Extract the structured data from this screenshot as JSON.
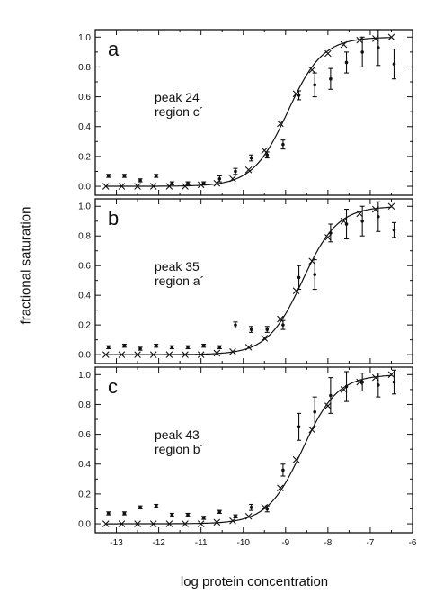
{
  "shared": {
    "ylabel": "fractional saturation",
    "xlabel": "log protein concentration",
    "x_ticks": [
      "-13",
      "-12",
      "-11",
      "-10",
      "-9",
      "-8",
      "-7",
      "-6"
    ],
    "y_ticks": [
      "0.0",
      "0.2",
      "0.4",
      "0.6",
      "0.8",
      "1.0"
    ]
  },
  "chart_data": [
    {
      "type": "scatter",
      "panel": "a",
      "annotation": [
        "peak 24",
        "region c´"
      ],
      "xlim": [
        -13.5,
        -6
      ],
      "ylim": [
        -0.06,
        1.05
      ],
      "x_minor_step": 0.5,
      "y_minor_step": 0.1,
      "fit_midpoint": -8.95,
      "fit_model_x": [
        -13.25,
        -12.875,
        -12.5,
        -12.125,
        -11.75,
        -11.375,
        -11.0,
        -10.625,
        -10.25,
        -9.875,
        -9.5,
        -9.125,
        -8.75,
        -8.375,
        -8.0,
        -7.625,
        -7.25,
        -6.875,
        -6.5
      ],
      "fit_model_y": [
        0.0,
        0.0,
        0.0,
        0.0,
        0.0,
        0.0,
        0.01,
        0.02,
        0.05,
        0.11,
        0.24,
        0.42,
        0.62,
        0.78,
        0.89,
        0.95,
        0.98,
        0.99,
        1.0
      ],
      "data_x": [
        -13.25,
        -12.875,
        -12.5,
        -12.125,
        -11.75,
        -11.375,
        -11.0,
        -10.625,
        -10.25,
        -9.875,
        -9.5,
        -9.125,
        -8.75,
        -8.375,
        -8.0,
        -7.625,
        -7.25,
        -6.875,
        -6.5
      ],
      "data_y": [
        0.07,
        0.07,
        0.04,
        0.07,
        0.02,
        0.02,
        0.02,
        0.05,
        0.1,
        0.19,
        0.21,
        0.28,
        0.61,
        0.68,
        0.72,
        0.83,
        0.9,
        0.93,
        0.82
      ],
      "data_err": [
        0.01,
        0.01,
        0.01,
        0.01,
        0.01,
        0.01,
        0.01,
        0.02,
        0.02,
        0.02,
        0.02,
        0.03,
        0.03,
        0.08,
        0.07,
        0.07,
        0.1,
        0.12,
        0.1
      ]
    },
    {
      "type": "scatter",
      "panel": "b",
      "annotation": [
        "peak 35",
        "region a´"
      ],
      "xlim": [
        -13.5,
        -6
      ],
      "ylim": [
        -0.06,
        1.05
      ],
      "x_minor_step": 0.5,
      "y_minor_step": 0.1,
      "fit_midpoint": -8.6,
      "fit_model_x": [
        -13.25,
        -12.875,
        -12.5,
        -12.125,
        -11.75,
        -11.375,
        -11.0,
        -10.625,
        -10.25,
        -9.875,
        -9.5,
        -9.125,
        -8.75,
        -8.375,
        -8.0,
        -7.625,
        -7.25,
        -6.875,
        -6.5
      ],
      "fit_model_y": [
        0.0,
        0.0,
        0.0,
        0.0,
        0.0,
        0.0,
        0.0,
        0.01,
        0.02,
        0.05,
        0.11,
        0.24,
        0.43,
        0.63,
        0.79,
        0.9,
        0.95,
        0.98,
        1.0
      ],
      "data_x": [
        -13.25,
        -12.875,
        -12.5,
        -12.125,
        -11.75,
        -11.375,
        -11.0,
        -10.625,
        -10.25,
        -9.875,
        -9.5,
        -9.125,
        -8.75,
        -8.375,
        -8.0,
        -7.625,
        -7.25,
        -6.875,
        -6.5
      ],
      "data_y": [
        0.05,
        0.06,
        0.04,
        0.06,
        0.05,
        0.05,
        0.06,
        0.05,
        0.2,
        0.17,
        0.17,
        0.2,
        0.52,
        0.54,
        0.82,
        0.88,
        0.9,
        0.93,
        0.84
      ],
      "data_err": [
        0.01,
        0.01,
        0.01,
        0.01,
        0.01,
        0.01,
        0.01,
        0.01,
        0.02,
        0.02,
        0.02,
        0.03,
        0.08,
        0.1,
        0.06,
        0.1,
        0.1,
        0.1,
        0.05
      ]
    },
    {
      "type": "scatter",
      "panel": "c",
      "annotation": [
        "peak 43",
        "region b´"
      ],
      "xlim": [
        -13.5,
        -6
      ],
      "ylim": [
        -0.06,
        1.05
      ],
      "x_minor_step": 0.5,
      "y_minor_step": 0.1,
      "fit_midpoint": -8.6,
      "fit_model_x": [
        -13.25,
        -12.875,
        -12.5,
        -12.125,
        -11.75,
        -11.375,
        -11.0,
        -10.625,
        -10.25,
        -9.875,
        -9.5,
        -9.125,
        -8.75,
        -8.375,
        -8.0,
        -7.625,
        -7.25,
        -6.875,
        -6.5
      ],
      "fit_model_y": [
        0.0,
        0.0,
        0.0,
        0.0,
        0.0,
        0.0,
        0.0,
        0.01,
        0.02,
        0.05,
        0.11,
        0.24,
        0.43,
        0.63,
        0.79,
        0.9,
        0.95,
        0.98,
        1.0
      ],
      "data_x": [
        -13.25,
        -12.875,
        -12.5,
        -12.125,
        -11.75,
        -11.375,
        -11.0,
        -10.625,
        -10.25,
        -9.875,
        -9.5,
        -9.125,
        -8.75,
        -8.375,
        -8.0,
        -7.625,
        -7.25,
        -6.875,
        -6.5
      ],
      "data_y": [
        0.07,
        0.07,
        0.11,
        0.12,
        0.06,
        0.06,
        0.04,
        0.08,
        0.05,
        0.11,
        0.1,
        0.36,
        0.65,
        0.75,
        0.86,
        0.92,
        0.95,
        0.93,
        0.95
      ],
      "data_err": [
        0.01,
        0.01,
        0.01,
        0.01,
        0.01,
        0.01,
        0.01,
        0.01,
        0.01,
        0.02,
        0.02,
        0.04,
        0.09,
        0.1,
        0.12,
        0.1,
        0.06,
        0.08,
        0.08
      ]
    }
  ]
}
